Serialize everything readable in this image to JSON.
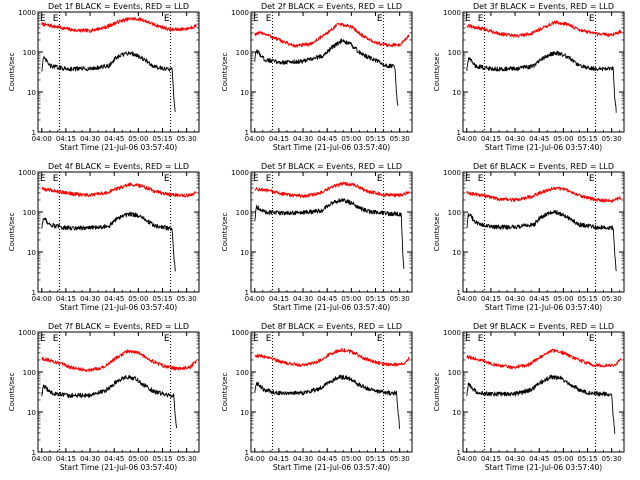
{
  "figure": {
    "colors": {
      "events": "#000000",
      "lld": "#ff0000",
      "axes": "#000000",
      "background": "#ffffff"
    }
  },
  "chart_data": [
    {
      "type": "line",
      "title": "Det 1f BLACK = Events, RED = LLD",
      "xlabel": "Start Time (21-Jul-06 03:57:40)",
      "ylabel": "Counts/sec",
      "x_ticks": [
        "04:00",
        "04:15",
        "04:30",
        "04:45",
        "05:00",
        "05:15",
        "05:30"
      ],
      "y_ticks": [
        "1",
        "10",
        "100",
        "1000"
      ],
      "y_scale": "log",
      "ylim": [
        1,
        1000
      ],
      "xlim": [
        "03:57:40",
        "05:37:40"
      ],
      "marker_lines": [
        "04:11",
        "05:20"
      ],
      "marker_labels": [
        "E",
        "E"
      ],
      "grid": false,
      "series": [
        {
          "name": "LLD",
          "color": "#ff0000",
          "x": [
            "04:00",
            "04:10",
            "04:20",
            "04:30",
            "04:40",
            "04:48",
            "04:55",
            "05:02",
            "05:10",
            "05:20",
            "05:30",
            "05:36"
          ],
          "values": [
            500,
            420,
            350,
            340,
            420,
            580,
            680,
            650,
            480,
            360,
            380,
            450
          ]
        },
        {
          "name": "Events",
          "color": "#000000",
          "x": [
            "04:00",
            "04:01",
            "04:03",
            "04:05",
            "04:15",
            "04:30",
            "04:42",
            "04:45",
            "04:50",
            "04:55",
            "05:00",
            "05:05",
            "05:10",
            "05:15",
            "05:20",
            "05:21",
            "05:22",
            "05:23"
          ],
          "values": [
            35,
            70,
            60,
            45,
            38,
            38,
            45,
            65,
            85,
            95,
            80,
            60,
            42,
            40,
            36,
            36,
            8,
            3
          ]
        }
      ]
    },
    {
      "type": "line",
      "title": "Det 2f BLACK = Events, RED = LLD",
      "xlabel": "Start Time (21-Jul-06 03:57:40)",
      "ylabel": "Counts/sec",
      "x_ticks": [
        "04:00",
        "04:15",
        "04:30",
        "04:45",
        "05:00",
        "05:15",
        "05:30"
      ],
      "y_ticks": [
        "1",
        "10",
        "100",
        "1000"
      ],
      "y_scale": "log",
      "ylim": [
        1,
        1000
      ],
      "xlim": [
        "03:57:40",
        "05:37:40"
      ],
      "marker_lines": [
        "04:11",
        "05:20"
      ],
      "marker_labels": [
        "E",
        "E"
      ],
      "grid": false,
      "series": [
        {
          "name": "LLD",
          "color": "#ff0000",
          "x": [
            "04:00",
            "04:05",
            "04:15",
            "04:25",
            "04:35",
            "04:45",
            "04:52",
            "05:00",
            "05:08",
            "05:15",
            "05:22",
            "05:30",
            "05:36"
          ],
          "values": [
            280,
            300,
            200,
            140,
            160,
            300,
            500,
            430,
            240,
            170,
            150,
            150,
            260
          ]
        },
        {
          "name": "Events",
          "color": "#000000",
          "x": [
            "04:00",
            "04:01",
            "04:03",
            "04:06",
            "04:15",
            "04:30",
            "04:42",
            "04:48",
            "04:54",
            "05:00",
            "05:06",
            "05:12",
            "05:18",
            "05:22",
            "05:26",
            "05:27",
            "05:28",
            "05:29"
          ],
          "values": [
            60,
            110,
            90,
            65,
            55,
            58,
            80,
            130,
            190,
            150,
            90,
            70,
            55,
            45,
            45,
            45,
            10,
            4
          ]
        }
      ]
    },
    {
      "type": "line",
      "title": "Det 3f BLACK = Events, RED = LLD",
      "xlabel": "Start Time (21-Jul-06 03:57:40)",
      "ylabel": "Counts/sec",
      "x_ticks": [
        "04:00",
        "04:15",
        "04:30",
        "04:45",
        "05:00",
        "05:15",
        "05:30"
      ],
      "y_ticks": [
        "1",
        "10",
        "100",
        "1000"
      ],
      "y_scale": "log",
      "ylim": [
        1,
        1000
      ],
      "xlim": [
        "03:57:40",
        "05:37:40"
      ],
      "marker_lines": [
        "04:11",
        "05:20"
      ],
      "marker_labels": [
        "E",
        "E"
      ],
      "grid": false,
      "series": [
        {
          "name": "LLD",
          "color": "#ff0000",
          "x": [
            "04:00",
            "04:10",
            "04:20",
            "04:30",
            "04:40",
            "04:48",
            "04:55",
            "05:02",
            "05:10",
            "05:20",
            "05:30",
            "05:36"
          ],
          "values": [
            450,
            380,
            290,
            250,
            290,
            420,
            550,
            500,
            360,
            280,
            270,
            330
          ]
        },
        {
          "name": "Events",
          "color": "#000000",
          "x": [
            "04:00",
            "04:01",
            "04:03",
            "04:05",
            "04:15",
            "04:30",
            "04:42",
            "04:45",
            "04:50",
            "04:55",
            "05:00",
            "05:05",
            "05:10",
            "05:15",
            "05:20",
            "05:30",
            "05:31",
            "05:32",
            "05:33"
          ],
          "values": [
            35,
            70,
            60,
            45,
            38,
            38,
            45,
            60,
            80,
            95,
            85,
            65,
            45,
            40,
            38,
            38,
            38,
            6,
            3
          ]
        }
      ]
    },
    {
      "type": "line",
      "title": "Det 4f BLACK = Events, RED = LLD",
      "xlabel": "Start Time (21-Jul-06 03:57:40)",
      "ylabel": "Counts/sec",
      "x_ticks": [
        "04:00",
        "04:15",
        "04:30",
        "04:45",
        "05:00",
        "05:15",
        "05:30"
      ],
      "y_ticks": [
        "1",
        "10",
        "100",
        "1000"
      ],
      "y_scale": "log",
      "ylim": [
        1,
        1000
      ],
      "xlim": [
        "03:57:40",
        "05:37:40"
      ],
      "marker_lines": [
        "04:11",
        "05:20"
      ],
      "marker_labels": [
        "E",
        "E"
      ],
      "grid": false,
      "series": [
        {
          "name": "LLD",
          "color": "#ff0000",
          "x": [
            "04:00",
            "04:10",
            "04:20",
            "04:30",
            "04:40",
            "04:48",
            "04:55",
            "05:02",
            "05:10",
            "05:20",
            "05:30",
            "05:36"
          ],
          "values": [
            380,
            330,
            280,
            260,
            300,
            400,
            490,
            450,
            330,
            270,
            260,
            300
          ]
        },
        {
          "name": "Events",
          "color": "#000000",
          "x": [
            "04:00",
            "04:01",
            "04:03",
            "04:05",
            "04:15",
            "04:30",
            "04:42",
            "04:45",
            "04:50",
            "04:55",
            "05:00",
            "05:05",
            "05:10",
            "05:15",
            "05:20",
            "05:21",
            "05:22",
            "05:23"
          ],
          "values": [
            40,
            70,
            60,
            48,
            40,
            40,
            45,
            60,
            80,
            90,
            80,
            62,
            45,
            42,
            38,
            38,
            8,
            3
          ]
        }
      ]
    },
    {
      "type": "line",
      "title": "Det 5f BLACK = Events, RED = LLD",
      "xlabel": "Start Time (21-Jul-06 03:57:40)",
      "ylabel": "Counts/sec",
      "x_ticks": [
        "04:00",
        "04:15",
        "04:30",
        "04:45",
        "05:00",
        "05:15",
        "05:30"
      ],
      "y_ticks": [
        "1",
        "10",
        "100",
        "1000"
      ],
      "y_scale": "log",
      "ylim": [
        1,
        1000
      ],
      "xlim": [
        "03:57:40",
        "05:37:40"
      ],
      "marker_lines": [
        "04:11",
        "05:20"
      ],
      "marker_labels": [
        "E",
        "E"
      ],
      "grid": false,
      "series": [
        {
          "name": "LLD",
          "color": "#ff0000",
          "x": [
            "04:00",
            "04:10",
            "04:20",
            "04:30",
            "04:40",
            "04:48",
            "04:55",
            "05:02",
            "05:10",
            "05:20",
            "05:30",
            "05:36"
          ],
          "values": [
            380,
            330,
            270,
            250,
            290,
            420,
            520,
            470,
            330,
            270,
            260,
            310
          ]
        },
        {
          "name": "Events",
          "color": "#000000",
          "x": [
            "04:00",
            "04:01",
            "04:03",
            "04:06",
            "04:15",
            "04:30",
            "04:42",
            "04:48",
            "04:54",
            "05:00",
            "05:06",
            "05:12",
            "05:18",
            "05:24",
            "05:30",
            "05:31",
            "05:32",
            "05:33"
          ],
          "values": [
            60,
            140,
            120,
            100,
            95,
            95,
            110,
            170,
            200,
            170,
            120,
            100,
            95,
            90,
            90,
            90,
            8,
            3
          ]
        }
      ]
    },
    {
      "type": "line",
      "title": "Det 6f BLACK = Events, RED = LLD",
      "xlabel": "Start Time (21-Jul-06 03:57:40)",
      "ylabel": "Counts/sec",
      "x_ticks": [
        "04:00",
        "04:15",
        "04:30",
        "04:45",
        "05:00",
        "05:15",
        "05:30"
      ],
      "y_ticks": [
        "1",
        "10",
        "100",
        "1000"
      ],
      "y_scale": "log",
      "ylim": [
        1,
        1000
      ],
      "xlim": [
        "03:57:40",
        "05:37:40"
      ],
      "marker_lines": [
        "04:11",
        "05:20"
      ],
      "marker_labels": [
        "E",
        "E"
      ],
      "grid": false,
      "series": [
        {
          "name": "LLD",
          "color": "#ff0000",
          "x": [
            "04:00",
            "04:10",
            "04:20",
            "04:30",
            "04:40",
            "04:48",
            "04:55",
            "05:02",
            "05:10",
            "05:20",
            "05:30",
            "05:36"
          ],
          "values": [
            300,
            260,
            210,
            200,
            240,
            330,
            400,
            360,
            260,
            200,
            190,
            230
          ]
        },
        {
          "name": "Events",
          "color": "#000000",
          "x": [
            "04:00",
            "04:01",
            "04:03",
            "04:05",
            "04:15",
            "04:30",
            "04:42",
            "04:45",
            "04:50",
            "04:55",
            "05:00",
            "05:05",
            "05:10",
            "05:15",
            "05:20",
            "05:30",
            "05:31",
            "05:32",
            "05:33"
          ],
          "values": [
            40,
            90,
            75,
            55,
            42,
            42,
            48,
            70,
            90,
            100,
            85,
            65,
            48,
            45,
            42,
            40,
            40,
            8,
            3
          ]
        }
      ]
    },
    {
      "type": "line",
      "title": "Det 7f BLACK = Events, RED = LLD",
      "xlabel": "Start Time (21-Jul-06 03:57:40)",
      "ylabel": "Counts/sec",
      "x_ticks": [
        "04:00",
        "04:15",
        "04:30",
        "04:45",
        "05:00",
        "05:15",
        "05:30"
      ],
      "y_ticks": [
        "1",
        "10",
        "100",
        "1000"
      ],
      "y_scale": "log",
      "ylim": [
        1,
        1000
      ],
      "xlim": [
        "03:57:40",
        "05:37:40"
      ],
      "marker_lines": [
        "04:11",
        "05:20"
      ],
      "marker_labels": [
        "E",
        "E"
      ],
      "grid": false,
      "series": [
        {
          "name": "LLD",
          "color": "#ff0000",
          "x": [
            "04:00",
            "04:08",
            "04:18",
            "04:28",
            "04:38",
            "04:46",
            "04:53",
            "05:00",
            "05:08",
            "05:16",
            "05:24",
            "05:32",
            "05:36"
          ],
          "values": [
            220,
            180,
            130,
            110,
            130,
            220,
            330,
            300,
            190,
            140,
            120,
            130,
            190
          ]
        },
        {
          "name": "Events",
          "color": "#000000",
          "x": [
            "04:00",
            "04:01",
            "04:03",
            "04:06",
            "04:15",
            "04:30",
            "04:40",
            "04:46",
            "04:52",
            "04:58",
            "05:04",
            "05:10",
            "05:16",
            "05:20",
            "05:22",
            "05:23",
            "05:24"
          ],
          "values": [
            25,
            45,
            38,
            30,
            26,
            26,
            35,
            55,
            75,
            70,
            45,
            32,
            28,
            26,
            26,
            8,
            3
          ]
        }
      ]
    },
    {
      "type": "line",
      "title": "Det 8f BLACK = Events, RED = LLD",
      "xlabel": "Start Time (21-Jul-06 03:57:40)",
      "ylabel": "Counts/sec",
      "x_ticks": [
        "04:00",
        "04:15",
        "04:30",
        "04:45",
        "05:00",
        "05:15",
        "05:30"
      ],
      "y_ticks": [
        "1",
        "10",
        "100",
        "1000"
      ],
      "y_scale": "log",
      "ylim": [
        1,
        1000
      ],
      "xlim": [
        "03:57:40",
        "05:37:40"
      ],
      "marker_lines": [
        "04:11",
        "05:20"
      ],
      "marker_labels": [
        "E",
        "E"
      ],
      "grid": false,
      "series": [
        {
          "name": "LLD",
          "color": "#ff0000",
          "x": [
            "04:00",
            "04:08",
            "04:18",
            "04:28",
            "04:38",
            "04:46",
            "04:53",
            "05:00",
            "05:08",
            "05:16",
            "05:24",
            "05:32",
            "05:36"
          ],
          "values": [
            260,
            240,
            170,
            150,
            170,
            270,
            360,
            320,
            220,
            170,
            150,
            160,
            220
          ]
        },
        {
          "name": "Events",
          "color": "#000000",
          "x": [
            "04:00",
            "04:01",
            "04:03",
            "04:06",
            "04:15",
            "04:30",
            "04:40",
            "04:46",
            "04:52",
            "04:58",
            "05:04",
            "05:10",
            "05:16",
            "05:24",
            "05:28",
            "05:29",
            "05:30"
          ],
          "values": [
            30,
            55,
            45,
            35,
            30,
            30,
            38,
            55,
            75,
            72,
            50,
            38,
            32,
            30,
            30,
            10,
            4
          ]
        }
      ]
    },
    {
      "type": "line",
      "title": "Det 9f BLACK = Events, RED = LLD",
      "xlabel": "Start Time (21-Jul-06 03:57:40)",
      "ylabel": "Counts/sec",
      "x_ticks": [
        "04:00",
        "04:15",
        "04:30",
        "04:45",
        "05:00",
        "05:15",
        "05:30"
      ],
      "y_ticks": [
        "1",
        "10",
        "100",
        "1000"
      ],
      "y_scale": "log",
      "ylim": [
        1,
        1000
      ],
      "xlim": [
        "03:57:40",
        "05:37:40"
      ],
      "marker_lines": [
        "04:11",
        "05:20"
      ],
      "marker_labels": [
        "E",
        "E"
      ],
      "grid": false,
      "series": [
        {
          "name": "LLD",
          "color": "#ff0000",
          "x": [
            "04:00",
            "04:08",
            "04:18",
            "04:28",
            "04:38",
            "04:46",
            "04:53",
            "05:00",
            "05:08",
            "05:16",
            "05:24",
            "05:32",
            "05:36"
          ],
          "values": [
            240,
            200,
            150,
            130,
            150,
            240,
            340,
            300,
            210,
            160,
            140,
            150,
            210
          ]
        },
        {
          "name": "Events",
          "color": "#000000",
          "x": [
            "04:00",
            "04:01",
            "04:03",
            "04:06",
            "04:15",
            "04:30",
            "04:40",
            "04:46",
            "04:52",
            "04:58",
            "05:04",
            "05:10",
            "05:16",
            "05:24",
            "05:30",
            "05:31",
            "05:32"
          ],
          "values": [
            25,
            50,
            40,
            32,
            28,
            28,
            36,
            55,
            75,
            72,
            50,
            36,
            30,
            28,
            28,
            8,
            3
          ]
        }
      ]
    }
  ]
}
